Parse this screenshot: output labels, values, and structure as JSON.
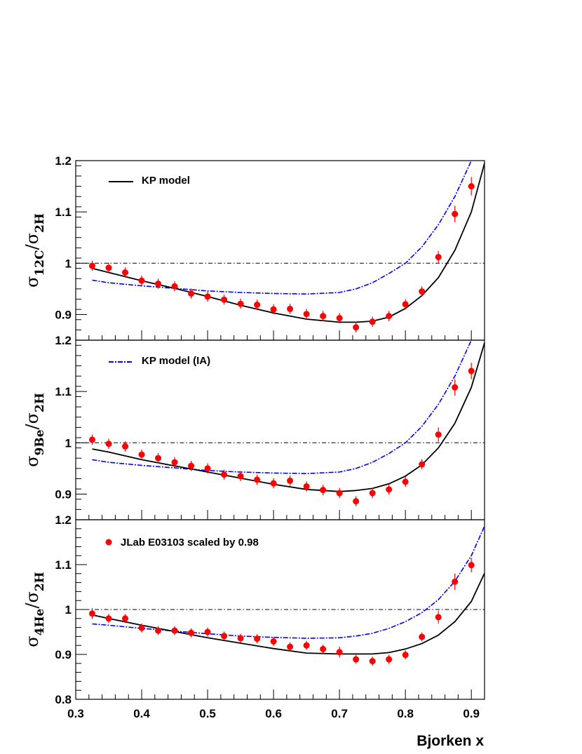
{
  "chart_data": {
    "type": "scatter",
    "xlabel": "Bjorken x",
    "xlim": [
      0.3,
      0.92
    ],
    "x_ticks": [
      "0.3",
      "0.4",
      "0.5",
      "0.6",
      "0.7",
      "0.8",
      "0.9"
    ],
    "legend": {
      "kp": "KP model",
      "kp_ia": "KP model (IA)",
      "data": "JLab E03103 scaled by 0.98"
    },
    "colors": {
      "data": "#ff0000",
      "kp": "#000000",
      "kp_ia": "#0000ff"
    },
    "panels": [
      {
        "ylabel": {
          "num": "12C",
          "den": "2H"
        },
        "ylim": [
          0.85,
          1.2
        ],
        "y_ticks": [
          "1.2",
          "1.1",
          "1",
          "0.9"
        ],
        "reference_line": 1.0,
        "data_points": {
          "x": [
            0.325,
            0.35,
            0.375,
            0.4,
            0.425,
            0.45,
            0.475,
            0.5,
            0.525,
            0.55,
            0.575,
            0.6,
            0.625,
            0.65,
            0.675,
            0.7,
            0.725,
            0.75,
            0.775,
            0.8,
            0.825,
            0.85,
            0.875,
            0.9
          ],
          "y": [
            0.995,
            0.991,
            0.982,
            0.966,
            0.96,
            0.955,
            0.941,
            0.935,
            0.929,
            0.921,
            0.919,
            0.91,
            0.911,
            0.901,
            0.897,
            0.893,
            0.875,
            0.886,
            0.897,
            0.92,
            0.945,
            1.012,
            1.096,
            1.15
          ],
          "err": [
            0.01,
            0.01,
            0.01,
            0.01,
            0.01,
            0.01,
            0.01,
            0.01,
            0.01,
            0.01,
            0.01,
            0.01,
            0.01,
            0.01,
            0.01,
            0.01,
            0.01,
            0.01,
            0.01,
            0.01,
            0.01,
            0.012,
            0.016,
            0.018
          ]
        },
        "kp_model": {
          "x": [
            0.325,
            0.35,
            0.4,
            0.45,
            0.5,
            0.55,
            0.6,
            0.65,
            0.7,
            0.725,
            0.75,
            0.775,
            0.8,
            0.825,
            0.85,
            0.875,
            0.9,
            0.92
          ],
          "y": [
            0.99,
            0.982,
            0.966,
            0.951,
            0.935,
            0.918,
            0.903,
            0.891,
            0.885,
            0.885,
            0.887,
            0.895,
            0.912,
            0.937,
            0.972,
            1.025,
            1.1,
            1.195
          ]
        },
        "kp_model_ia": {
          "x": [
            0.325,
            0.35,
            0.4,
            0.45,
            0.5,
            0.55,
            0.6,
            0.65,
            0.7,
            0.725,
            0.75,
            0.775,
            0.8,
            0.825,
            0.85,
            0.875,
            0.9
          ],
          "y": [
            0.967,
            0.962,
            0.956,
            0.951,
            0.946,
            0.943,
            0.941,
            0.94,
            0.943,
            0.95,
            0.962,
            0.98,
            1.0,
            1.032,
            1.075,
            1.13,
            1.2
          ]
        }
      },
      {
        "ylabel": {
          "num": "9Be",
          "den": "2H"
        },
        "ylim": [
          0.85,
          1.2
        ],
        "y_ticks": [
          "1.2",
          "1.1",
          "1",
          "0.9"
        ],
        "reference_line": 1.0,
        "data_points": {
          "x": [
            0.325,
            0.35,
            0.375,
            0.4,
            0.425,
            0.45,
            0.475,
            0.5,
            0.525,
            0.55,
            0.575,
            0.6,
            0.625,
            0.65,
            0.675,
            0.7,
            0.725,
            0.75,
            0.775,
            0.8,
            0.825,
            0.85,
            0.875,
            0.9
          ],
          "y": [
            1.006,
            0.998,
            0.993,
            0.977,
            0.97,
            0.962,
            0.955,
            0.95,
            0.938,
            0.935,
            0.928,
            0.921,
            0.926,
            0.915,
            0.908,
            0.902,
            0.886,
            0.902,
            0.909,
            0.924,
            0.958,
            1.016,
            1.108,
            1.14
          ],
          "err": [
            0.01,
            0.01,
            0.01,
            0.01,
            0.01,
            0.01,
            0.01,
            0.01,
            0.01,
            0.01,
            0.01,
            0.01,
            0.01,
            0.01,
            0.01,
            0.01,
            0.01,
            0.01,
            0.01,
            0.01,
            0.01,
            0.014,
            0.016,
            0.016
          ]
        },
        "kp_model": {
          "x": [
            0.325,
            0.35,
            0.4,
            0.45,
            0.5,
            0.55,
            0.6,
            0.65,
            0.7,
            0.725,
            0.75,
            0.775,
            0.8,
            0.825,
            0.85,
            0.875,
            0.9,
            0.92
          ],
          "y": [
            0.988,
            0.982,
            0.967,
            0.955,
            0.943,
            0.931,
            0.919,
            0.909,
            0.905,
            0.907,
            0.911,
            0.92,
            0.935,
            0.957,
            0.99,
            1.038,
            1.108,
            1.195
          ]
        },
        "kp_model_ia": {
          "x": [
            0.325,
            0.35,
            0.4,
            0.45,
            0.5,
            0.55,
            0.6,
            0.65,
            0.7,
            0.725,
            0.75,
            0.775,
            0.8,
            0.825,
            0.85,
            0.875,
            0.9
          ],
          "y": [
            0.967,
            0.962,
            0.956,
            0.951,
            0.946,
            0.943,
            0.941,
            0.94,
            0.943,
            0.95,
            0.962,
            0.979,
            1.0,
            1.032,
            1.075,
            1.13,
            1.2
          ]
        }
      },
      {
        "ylabel": {
          "num": "4He",
          "den": "2H"
        },
        "ylim": [
          0.8,
          1.2
        ],
        "y_ticks": [
          "1.2",
          "1.1",
          "1",
          "0.9",
          "0.8"
        ],
        "reference_line": 1.0,
        "data_points": {
          "x": [
            0.325,
            0.35,
            0.375,
            0.4,
            0.425,
            0.45,
            0.475,
            0.5,
            0.525,
            0.55,
            0.575,
            0.6,
            0.625,
            0.65,
            0.675,
            0.7,
            0.725,
            0.75,
            0.775,
            0.8,
            0.825,
            0.85,
            0.875,
            0.9
          ],
          "y": [
            0.991,
            0.98,
            0.98,
            0.959,
            0.953,
            0.953,
            0.948,
            0.95,
            0.941,
            0.936,
            0.935,
            0.929,
            0.917,
            0.92,
            0.912,
            0.905,
            0.889,
            0.885,
            0.889,
            0.899,
            0.939,
            0.983,
            1.062,
            1.099
          ],
          "err": [
            0.012,
            0.01,
            0.01,
            0.01,
            0.01,
            0.01,
            0.01,
            0.01,
            0.01,
            0.01,
            0.01,
            0.01,
            0.01,
            0.01,
            0.01,
            0.012,
            0.01,
            0.01,
            0.01,
            0.01,
            0.01,
            0.014,
            0.018,
            0.016
          ]
        },
        "kp_model": {
          "x": [
            0.325,
            0.35,
            0.4,
            0.45,
            0.5,
            0.55,
            0.6,
            0.65,
            0.7,
            0.725,
            0.75,
            0.775,
            0.8,
            0.825,
            0.85,
            0.875,
            0.9,
            0.92
          ],
          "y": [
            0.988,
            0.98,
            0.965,
            0.951,
            0.937,
            0.925,
            0.913,
            0.903,
            0.901,
            0.901,
            0.901,
            0.904,
            0.912,
            0.924,
            0.943,
            0.973,
            1.018,
            1.081
          ]
        },
        "kp_model_ia": {
          "x": [
            0.325,
            0.35,
            0.4,
            0.45,
            0.5,
            0.55,
            0.6,
            0.65,
            0.7,
            0.725,
            0.75,
            0.775,
            0.8,
            0.825,
            0.85,
            0.875,
            0.9,
            0.92
          ],
          "y": [
            0.968,
            0.965,
            0.958,
            0.952,
            0.946,
            0.941,
            0.938,
            0.936,
            0.937,
            0.941,
            0.947,
            0.958,
            0.973,
            0.993,
            1.022,
            1.063,
            1.12,
            1.186
          ]
        }
      }
    ]
  }
}
